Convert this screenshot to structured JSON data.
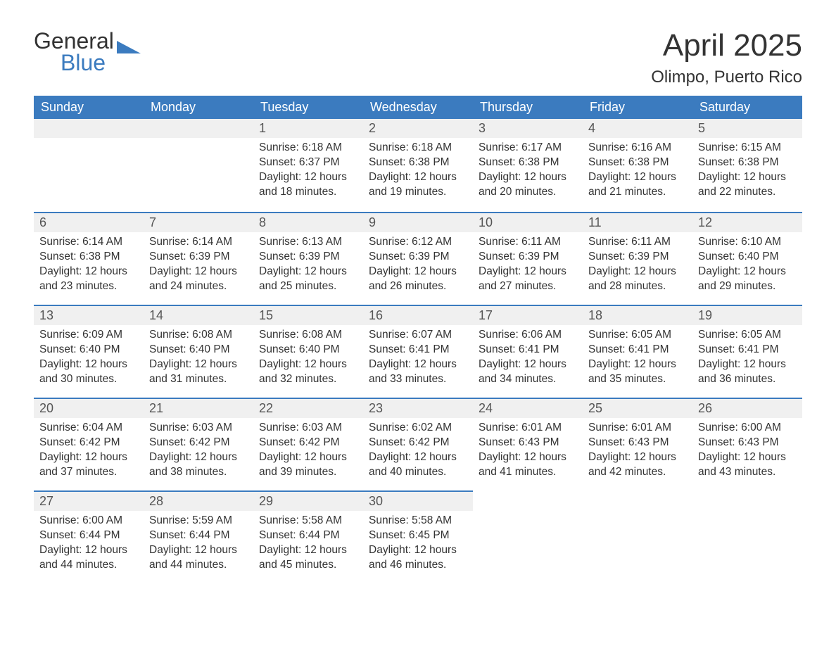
{
  "logo": {
    "text_general": "General",
    "text_blue": "Blue",
    "accent_color": "#3b7bbf"
  },
  "title": {
    "month": "April 2025",
    "location": "Olimpo, Puerto Rico"
  },
  "style": {
    "header_bg": "#3b7bbf",
    "header_text": "#ffffff",
    "daynum_bg": "#f0f0f0",
    "daynum_text": "#555555",
    "row_border": "#3b7bbf",
    "body_text": "#333333",
    "page_bg": "#ffffff",
    "header_fontsize": 18,
    "daynum_fontsize": 18,
    "body_fontsize": 15.5,
    "title_fontsize": 44,
    "location_fontsize": 24
  },
  "weekdays": [
    "Sunday",
    "Monday",
    "Tuesday",
    "Wednesday",
    "Thursday",
    "Friday",
    "Saturday"
  ],
  "weeks": [
    [
      null,
      null,
      {
        "n": "1",
        "sunrise": "6:18 AM",
        "sunset": "6:37 PM",
        "dl": "12 hours and 18 minutes."
      },
      {
        "n": "2",
        "sunrise": "6:18 AM",
        "sunset": "6:38 PM",
        "dl": "12 hours and 19 minutes."
      },
      {
        "n": "3",
        "sunrise": "6:17 AM",
        "sunset": "6:38 PM",
        "dl": "12 hours and 20 minutes."
      },
      {
        "n": "4",
        "sunrise": "6:16 AM",
        "sunset": "6:38 PM",
        "dl": "12 hours and 21 minutes."
      },
      {
        "n": "5",
        "sunrise": "6:15 AM",
        "sunset": "6:38 PM",
        "dl": "12 hours and 22 minutes."
      }
    ],
    [
      {
        "n": "6",
        "sunrise": "6:14 AM",
        "sunset": "6:38 PM",
        "dl": "12 hours and 23 minutes."
      },
      {
        "n": "7",
        "sunrise": "6:14 AM",
        "sunset": "6:39 PM",
        "dl": "12 hours and 24 minutes."
      },
      {
        "n": "8",
        "sunrise": "6:13 AM",
        "sunset": "6:39 PM",
        "dl": "12 hours and 25 minutes."
      },
      {
        "n": "9",
        "sunrise": "6:12 AM",
        "sunset": "6:39 PM",
        "dl": "12 hours and 26 minutes."
      },
      {
        "n": "10",
        "sunrise": "6:11 AM",
        "sunset": "6:39 PM",
        "dl": "12 hours and 27 minutes."
      },
      {
        "n": "11",
        "sunrise": "6:11 AM",
        "sunset": "6:39 PM",
        "dl": "12 hours and 28 minutes."
      },
      {
        "n": "12",
        "sunrise": "6:10 AM",
        "sunset": "6:40 PM",
        "dl": "12 hours and 29 minutes."
      }
    ],
    [
      {
        "n": "13",
        "sunrise": "6:09 AM",
        "sunset": "6:40 PM",
        "dl": "12 hours and 30 minutes."
      },
      {
        "n": "14",
        "sunrise": "6:08 AM",
        "sunset": "6:40 PM",
        "dl": "12 hours and 31 minutes."
      },
      {
        "n": "15",
        "sunrise": "6:08 AM",
        "sunset": "6:40 PM",
        "dl": "12 hours and 32 minutes."
      },
      {
        "n": "16",
        "sunrise": "6:07 AM",
        "sunset": "6:41 PM",
        "dl": "12 hours and 33 minutes."
      },
      {
        "n": "17",
        "sunrise": "6:06 AM",
        "sunset": "6:41 PM",
        "dl": "12 hours and 34 minutes."
      },
      {
        "n": "18",
        "sunrise": "6:05 AM",
        "sunset": "6:41 PM",
        "dl": "12 hours and 35 minutes."
      },
      {
        "n": "19",
        "sunrise": "6:05 AM",
        "sunset": "6:41 PM",
        "dl": "12 hours and 36 minutes."
      }
    ],
    [
      {
        "n": "20",
        "sunrise": "6:04 AM",
        "sunset": "6:42 PM",
        "dl": "12 hours and 37 minutes."
      },
      {
        "n": "21",
        "sunrise": "6:03 AM",
        "sunset": "6:42 PM",
        "dl": "12 hours and 38 minutes."
      },
      {
        "n": "22",
        "sunrise": "6:03 AM",
        "sunset": "6:42 PM",
        "dl": "12 hours and 39 minutes."
      },
      {
        "n": "23",
        "sunrise": "6:02 AM",
        "sunset": "6:42 PM",
        "dl": "12 hours and 40 minutes."
      },
      {
        "n": "24",
        "sunrise": "6:01 AM",
        "sunset": "6:43 PM",
        "dl": "12 hours and 41 minutes."
      },
      {
        "n": "25",
        "sunrise": "6:01 AM",
        "sunset": "6:43 PM",
        "dl": "12 hours and 42 minutes."
      },
      {
        "n": "26",
        "sunrise": "6:00 AM",
        "sunset": "6:43 PM",
        "dl": "12 hours and 43 minutes."
      }
    ],
    [
      {
        "n": "27",
        "sunrise": "6:00 AM",
        "sunset": "6:44 PM",
        "dl": "12 hours and 44 minutes."
      },
      {
        "n": "28",
        "sunrise": "5:59 AM",
        "sunset": "6:44 PM",
        "dl": "12 hours and 44 minutes."
      },
      {
        "n": "29",
        "sunrise": "5:58 AM",
        "sunset": "6:44 PM",
        "dl": "12 hours and 45 minutes."
      },
      {
        "n": "30",
        "sunrise": "5:58 AM",
        "sunset": "6:45 PM",
        "dl": "12 hours and 46 minutes."
      },
      null,
      null,
      null
    ]
  ],
  "labels": {
    "sunrise": "Sunrise:",
    "sunset": "Sunset:",
    "daylight": "Daylight:"
  }
}
